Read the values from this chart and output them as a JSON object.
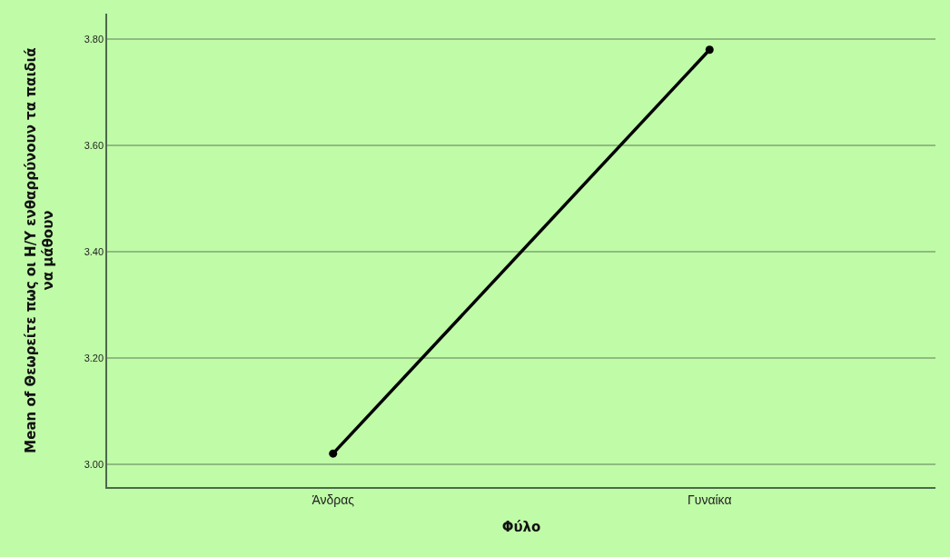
{
  "chart_data": {
    "type": "line",
    "xlabel": "Φύλο",
    "ylabel": "Mean of Θεωρείτε πως οι Η/Υ ενθαρρύνουν τα παιδιά\nνα μάθουν",
    "categories": [
      "Άνδρας",
      "Γυναίκα"
    ],
    "series": [
      {
        "color": "#000000",
        "values": [
          3.02,
          3.78
        ]
      }
    ],
    "ylim": [
      2.957,
      3.848
    ],
    "yticks": [
      {
        "value": 3.0,
        "label": "3.00"
      },
      {
        "value": 3.2,
        "label": "3.20"
      },
      {
        "value": 3.4,
        "label": "3.40"
      },
      {
        "value": 3.6,
        "label": "3.60"
      },
      {
        "value": 3.8,
        "label": "3.80"
      }
    ],
    "grid": "y",
    "marker": "circle",
    "legend": false
  }
}
